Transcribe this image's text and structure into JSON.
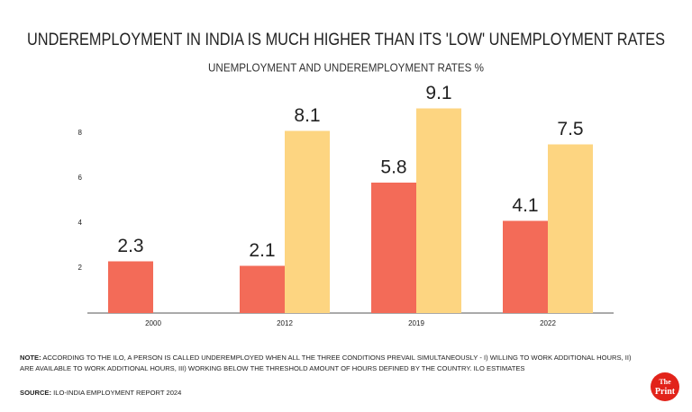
{
  "chart_data": {
    "type": "bar",
    "title": "UNDEREMPLOYMENT IN INDIA IS MUCH HIGHER THAN ITS 'LOW' UNEMPLOYMENT RATES",
    "subtitle": "UNEMPLOYMENT AND UNDEREMPLOYMENT RATES %",
    "categories": [
      "2000",
      "2012",
      "2019",
      "2022"
    ],
    "series": [
      {
        "color": "#f36b58",
        "values": [
          2.3,
          2.1,
          5.8,
          4.1
        ]
      },
      {
        "color": "#fdd581",
        "values": [
          null,
          8.1,
          9.1,
          7.5
        ]
      }
    ],
    "ylim": [
      0,
      10
    ],
    "yticks": [
      2,
      4,
      6,
      8
    ],
    "grid": false
  },
  "footer": {
    "note_label": "NOTE:",
    "note": "ACCORDING TO THE ILO, A PERSON IS CALLED UNDEREMPLOYED WHEN ALL THE THREE CONDITIONS PREVAIL SIMULTANEOUSLY - I) WILLING TO WORK ADDITIONAL HOURS, II) ARE AVAILABLE TO WORK ADDITIONAL HOURS, III) WORKING BELOW THE THRESHOLD AMOUNT OF HOURS DEFINED BY THE COUNTRY. ILO ESTIMATES",
    "source_label": "SOURCE:",
    "source": "ILO-INDIA EMPLOYMENT REPORT 2024",
    "logo_top": "The",
    "logo_bottom": "Print"
  }
}
